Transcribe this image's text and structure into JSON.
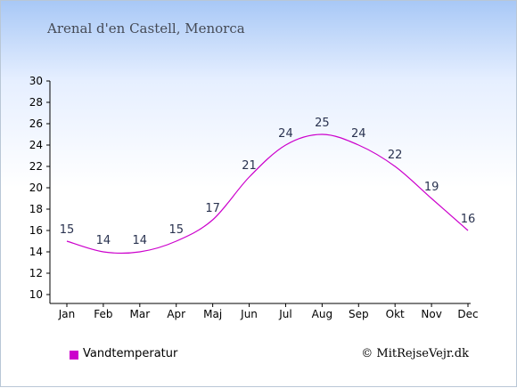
{
  "header": {
    "title": "Arenal d'en Castell, Menorca"
  },
  "legend": {
    "label": "Vandtemperatur",
    "color": "#cc00cc"
  },
  "footer": {
    "copyright": "© MitRejseVejr.dk"
  },
  "chart_data": {
    "type": "line",
    "title": "Arenal d'en Castell, Menorca",
    "categories": [
      "Jan",
      "Feb",
      "Mar",
      "Apr",
      "Maj",
      "Jun",
      "Jul",
      "Aug",
      "Sep",
      "Okt",
      "Nov",
      "Dec"
    ],
    "series": [
      {
        "name": "Vandtemperatur",
        "values": [
          15,
          14,
          14,
          15,
          17,
          21,
          24,
          25,
          24,
          22,
          19,
          16
        ],
        "color": "#cc00cc"
      }
    ],
    "ylim": [
      10,
      30
    ],
    "yticks": [
      10,
      12,
      14,
      16,
      18,
      20,
      22,
      24,
      26,
      28,
      30
    ],
    "grid": false,
    "legend_position": "bottom-left"
  }
}
